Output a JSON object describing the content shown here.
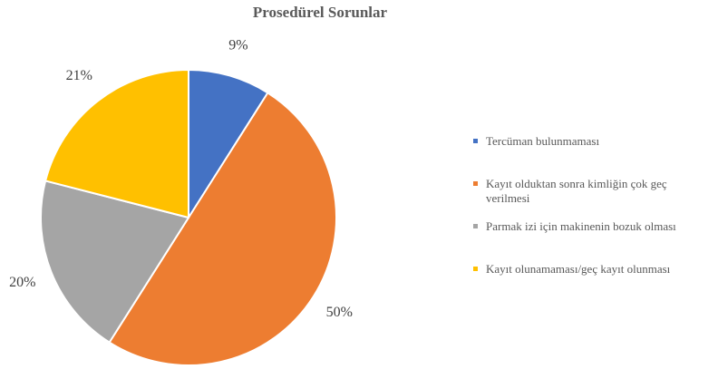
{
  "chart_data": {
    "type": "pie",
    "title": "Prosedürel Sorunlar",
    "categories": [
      "Tercüman bulunmaması",
      "Kayıt olduktan sonra kimliğin çok geç verilmesi",
      "Parmak izi için makinenin bozuk olması",
      "Kayıt olunamaması/geç kayıt olunması"
    ],
    "values": [
      9,
      50,
      20,
      21
    ],
    "value_labels": [
      "9%",
      "50%",
      "20%",
      "21%"
    ],
    "colors": [
      "#4472c4",
      "#ed7d31",
      "#a5a5a5",
      "#ffc000"
    ],
    "legend": "right"
  }
}
